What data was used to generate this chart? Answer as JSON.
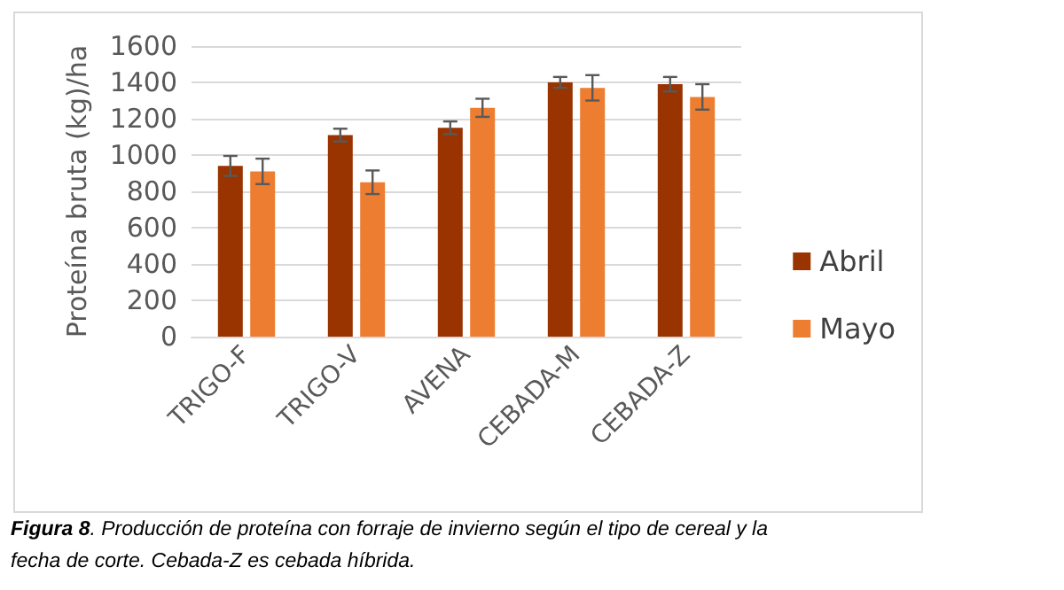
{
  "chart_data": {
    "type": "bar",
    "ylabel": "Proteína bruta (kg)/ha",
    "categories": [
      "TRIGO-F",
      "TRIGO-V",
      "AVENA",
      "CEBADA-M",
      "CEBADA-Z"
    ],
    "series": [
      {
        "name": "Abril",
        "color": "#993300",
        "values": [
          940,
          1110,
          1150,
          1400,
          1390
        ],
        "errors": [
          55,
          35,
          35,
          30,
          40
        ]
      },
      {
        "name": "Mayo",
        "color": "#ed7d31",
        "values": [
          910,
          850,
          1260,
          1370,
          1320
        ],
        "errors": [
          70,
          65,
          50,
          70,
          70
        ]
      }
    ],
    "ylim": [
      0,
      1600
    ],
    "yticks": [
      0,
      200,
      400,
      600,
      800,
      1000,
      1200,
      1400,
      1600
    ],
    "grid": "y",
    "legend": "right",
    "annotations": [
      "Figura 8. Producción de proteína con forraje de invierno según el tipo de cereal y la fecha de corte. Cebada-Z es cebada híbrida."
    ]
  }
}
